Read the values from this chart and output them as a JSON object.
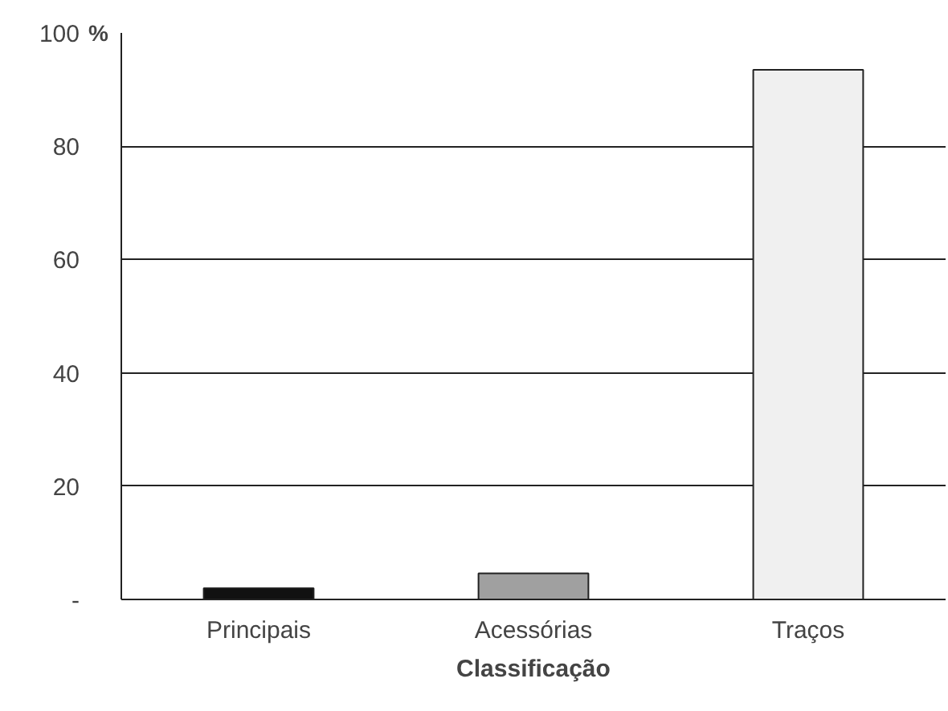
{
  "chart_data": {
    "type": "bar",
    "categories": [
      "Principais",
      "Acessórias",
      "Traços"
    ],
    "values": [
      2,
      4.6,
      93.5
    ],
    "colors": [
      "#111111",
      "#a0a0a0",
      "#f0f0f0"
    ],
    "xlabel": "Classificação",
    "ylabel": "%",
    "ylim": [
      0,
      100
    ],
    "yticks": [
      {
        "value": 0,
        "label": "-"
      },
      20,
      40,
      60,
      80,
      100
    ],
    "grid": "y"
  }
}
